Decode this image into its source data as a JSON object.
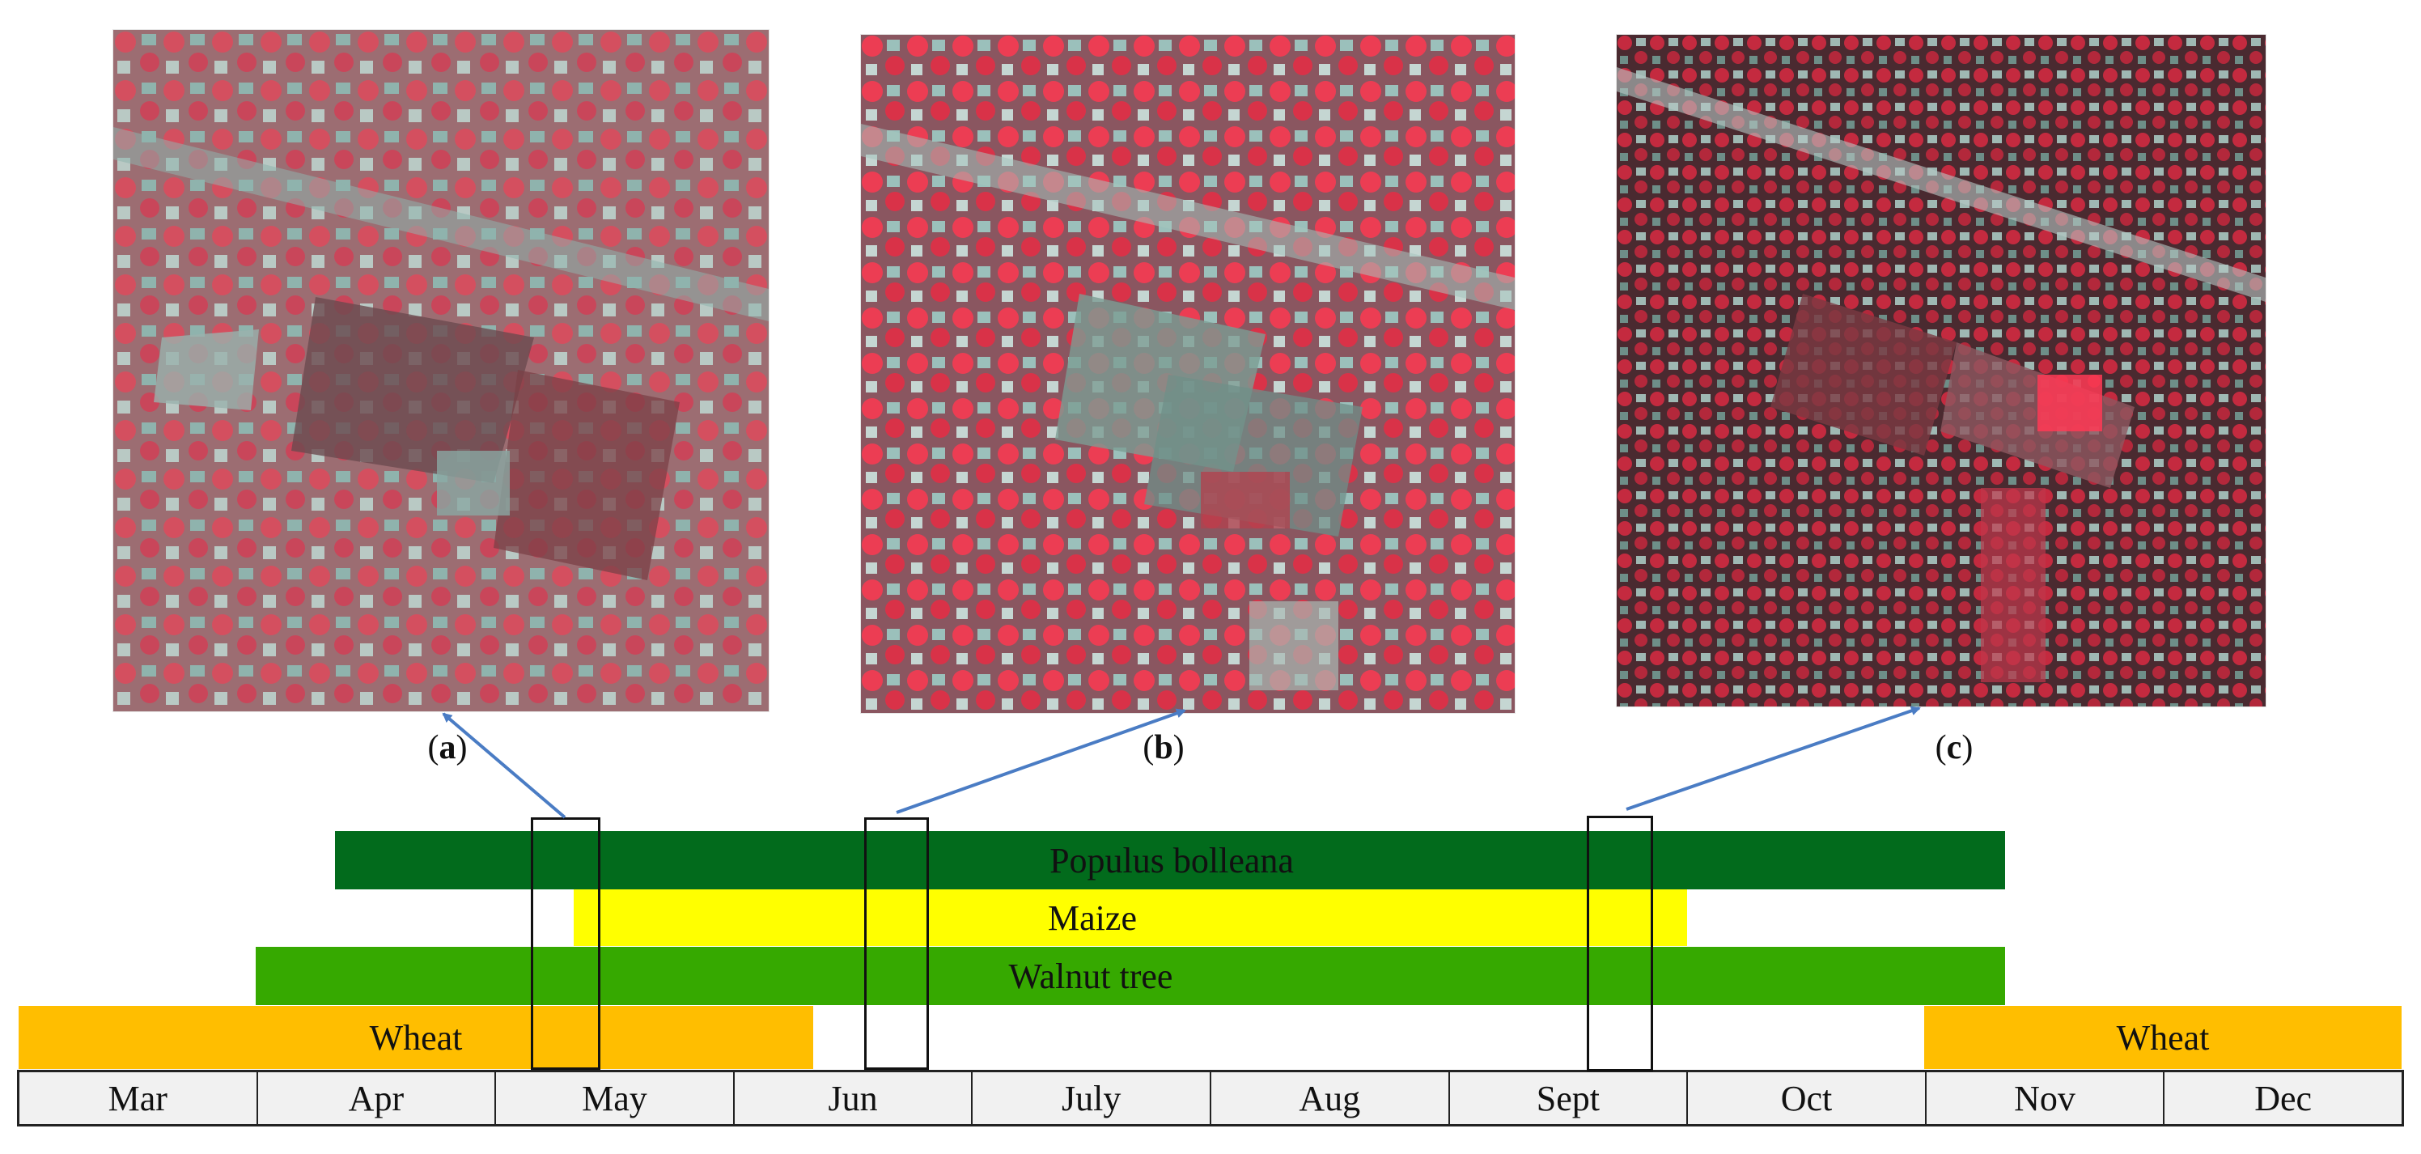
{
  "panels": [
    {
      "label": "a",
      "tint": "#c85a66"
    },
    {
      "label": "b",
      "tint": "#d4404f"
    },
    {
      "label": "c",
      "tint": "#b8303d"
    }
  ],
  "crops": [
    {
      "name": "Populus bolleana",
      "color": "#026b1c",
      "start_month": 1.33,
      "end_month": 8.36
    },
    {
      "name": "Maize",
      "color": "#ffff00",
      "start_month": 2.33,
      "end_month": 7.03
    },
    {
      "name": "Walnut tree",
      "color": "#36a900",
      "start_month": 1.0,
      "end_month": 8.36
    },
    {
      "name": "Wheat",
      "color": "#ffbe00",
      "start_month": 0.0,
      "end_month": 3.35
    },
    {
      "name": "Wheat",
      "color": "#ffbe00",
      "start_month": 8.0,
      "end_month": 10.0
    }
  ],
  "months": [
    "Mar",
    "Apr",
    "May",
    "Jun",
    "July",
    "Aug",
    "Sept",
    "Oct",
    "Nov",
    "Dec"
  ],
  "arrow_color": "#4a7cc4"
}
